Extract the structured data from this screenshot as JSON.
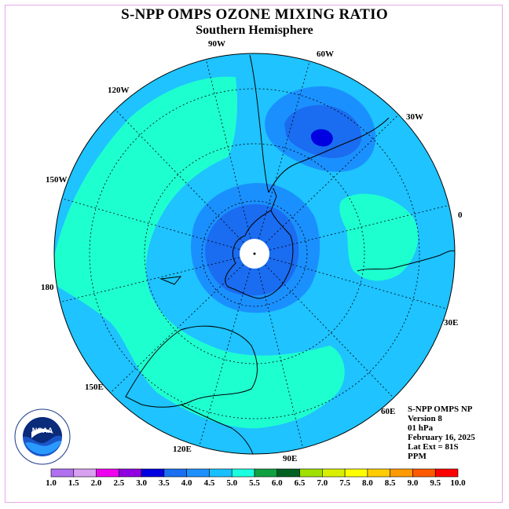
{
  "title": "S-NPP OMPS OZONE MIXING RATIO",
  "subtitle": "Southern Hemisphere",
  "info": {
    "line1": "S-NPP OMPS NP",
    "line2": "Version 8",
    "line3": "01 hPa",
    "line4": "February 16, 2025",
    "line5": "Lat Ext = 81S",
    "line6": "PPM"
  },
  "logo": {
    "text": "NOAA",
    "ring_text": "NATIONAL OCEANIC AND ATMOSPHERIC ADMINISTRATION · U.S. DEPARTMENT OF COMMERCE"
  },
  "longitude_labels": [
    "90W",
    "60W",
    "30W",
    "0",
    "30E",
    "60E",
    "90E",
    "120E",
    "150E",
    "180",
    "150W",
    "120W"
  ],
  "colorbar": {
    "ticks": [
      "1.0",
      "1.5",
      "2.0",
      "2.5",
      "3.0",
      "3.5",
      "4.0",
      "4.5",
      "5.0",
      "5.5",
      "6.0",
      "6.5",
      "7.0",
      "7.5",
      "8.0",
      "8.5",
      "9.0",
      "9.5",
      "10.0"
    ],
    "colors": [
      "#b070f0",
      "#d8a0f0",
      "#ee00ee",
      "#9000e0",
      "#0000e0",
      "#1a70f0",
      "#1e90ff",
      "#18c0ff",
      "#1affe0",
      "#10a040",
      "#006020",
      "#a0e000",
      "#d8f000",
      "#ffff00",
      "#ffcc00",
      "#ff9a00",
      "#ff5a00",
      "#ff0000",
      "#8a5a3a"
    ]
  },
  "colors": {
    "bg_field": "#1ec3ff",
    "band_35": "#1a90ff",
    "band_30": "#1a6cf0",
    "band_25": "#0000e0",
    "band_45": "#1effd0",
    "pole": "#ffffff"
  }
}
